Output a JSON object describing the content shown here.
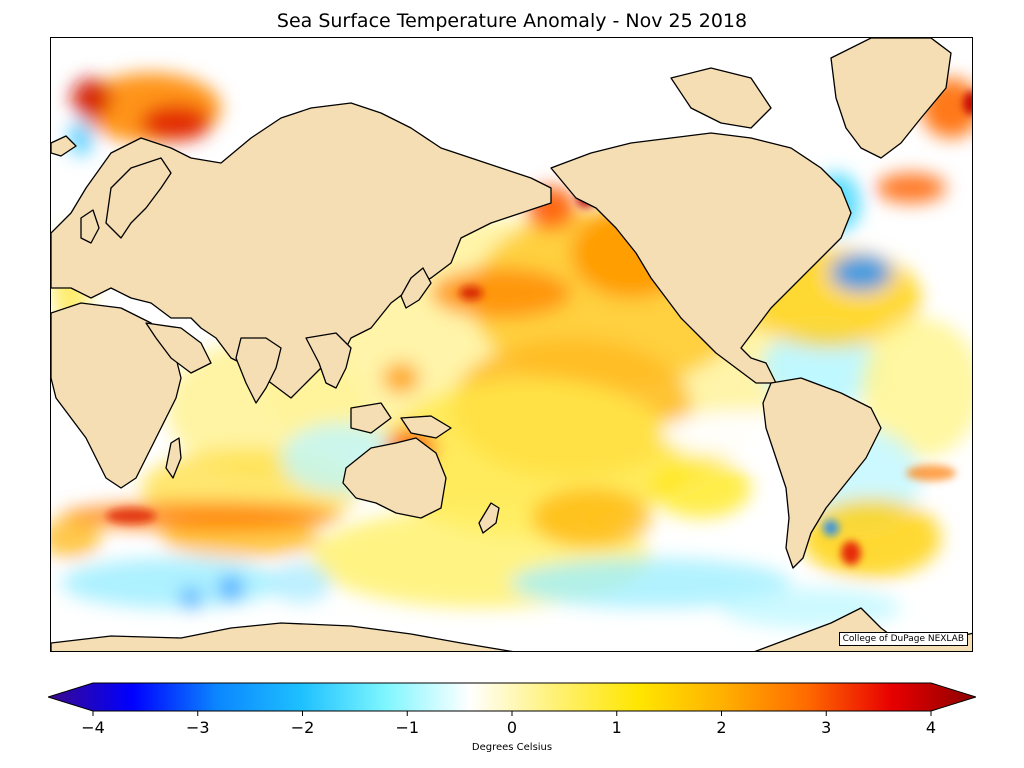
{
  "title": "Sea Surface Temperature Anomaly - Nov 25 2018",
  "credit": "College of DuPage NEXLAB",
  "map": {
    "land_color": "#f5deb3",
    "coast_color": "#000000",
    "ocean_zero_color": "#ffffff"
  },
  "colorbar": {
    "label": "Degrees Celsius",
    "min": -4,
    "max": 4,
    "ticks": [
      "−4",
      "−3",
      "−2",
      "−1",
      "0",
      "1",
      "2",
      "3",
      "4"
    ],
    "colors": [
      "#3b0a8c",
      "#0000ff",
      "#0b86ff",
      "#1ec0ff",
      "#7ef6ff",
      "#ffffff",
      "#fff176",
      "#ffe600",
      "#ffb000",
      "#ff6a00",
      "#e80000",
      "#8b0000"
    ]
  }
}
